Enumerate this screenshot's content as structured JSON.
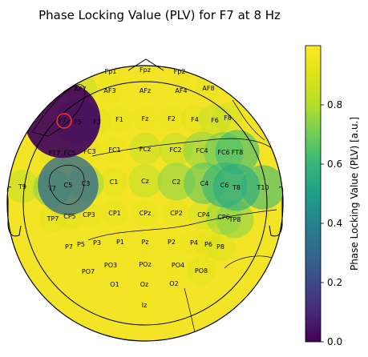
{
  "chart_data": {
    "type": "heatmap",
    "subtype": "topomap",
    "title": "Phase Locking Value (PLV) for F7 at 8 Hz",
    "colorbar": {
      "label": "Phase Locking Value (PLV) [a.u.]",
      "range": [
        0.0,
        1.0
      ],
      "ticks": [
        0.0,
        0.2,
        0.4,
        0.6,
        0.8
      ],
      "tick_labels": [
        "0.0",
        "0.2",
        "0.4",
        "0.6",
        "0.8"
      ],
      "colormap": "viridis"
    },
    "seed_electrode": "F7",
    "contours": true,
    "electrodes": [
      {
        "name": "Fp1",
        "value": 0.95
      },
      {
        "name": "Fpz",
        "value": 0.96
      },
      {
        "name": "Fp2",
        "value": 0.96
      },
      {
        "name": "AF7",
        "value": 0.8
      },
      {
        "name": "AF3",
        "value": 0.93
      },
      {
        "name": "AFz",
        "value": 0.95
      },
      {
        "name": "AF4",
        "value": 0.95
      },
      {
        "name": "AF8",
        "value": 0.93
      },
      {
        "name": "F7",
        "value": 0.02
      },
      {
        "name": "F5",
        "value": 0.6
      },
      {
        "name": "F3",
        "value": 0.9
      },
      {
        "name": "F1",
        "value": 0.93
      },
      {
        "name": "Fz",
        "value": 0.94
      },
      {
        "name": "F2",
        "value": 0.93
      },
      {
        "name": "F4",
        "value": 0.9
      },
      {
        "name": "F6",
        "value": 0.82
      },
      {
        "name": "F8",
        "value": 0.85
      },
      {
        "name": "FT7",
        "value": 0.88
      },
      {
        "name": "FC5",
        "value": 0.9
      },
      {
        "name": "FC3",
        "value": 0.92
      },
      {
        "name": "FC1",
        "value": 0.93
      },
      {
        "name": "FCz",
        "value": 0.82
      },
      {
        "name": "FC2",
        "value": 0.8
      },
      {
        "name": "FC4",
        "value": 0.72
      },
      {
        "name": "FC6",
        "value": 0.68
      },
      {
        "name": "FT8",
        "value": 0.6
      },
      {
        "name": "T9",
        "value": 0.8
      },
      {
        "name": "T7",
        "value": 0.72
      },
      {
        "name": "C5",
        "value": 0.3
      },
      {
        "name": "C3",
        "value": 0.75
      },
      {
        "name": "C1",
        "value": 0.9
      },
      {
        "name": "Cz",
        "value": 0.8
      },
      {
        "name": "C2",
        "value": 0.72
      },
      {
        "name": "C4",
        "value": 0.65
      },
      {
        "name": "C6",
        "value": 0.58
      },
      {
        "name": "T8",
        "value": 0.55
      },
      {
        "name": "T10",
        "value": 0.6
      },
      {
        "name": "TP7",
        "value": 0.9
      },
      {
        "name": "CP5",
        "value": 0.9
      },
      {
        "name": "CP3",
        "value": 0.93
      },
      {
        "name": "CP1",
        "value": 0.92
      },
      {
        "name": "CPz",
        "value": 0.93
      },
      {
        "name": "CP2",
        "value": 0.92
      },
      {
        "name": "CP4",
        "value": 0.85
      },
      {
        "name": "CP6",
        "value": 0.75
      },
      {
        "name": "TP8",
        "value": 0.72
      },
      {
        "name": "P7",
        "value": 0.96
      },
      {
        "name": "P5",
        "value": 0.96
      },
      {
        "name": "P3",
        "value": 0.96
      },
      {
        "name": "P1",
        "value": 0.95
      },
      {
        "name": "Pz",
        "value": 0.95
      },
      {
        "name": "P2",
        "value": 0.95
      },
      {
        "name": "P4",
        "value": 0.94
      },
      {
        "name": "P6",
        "value": 0.9
      },
      {
        "name": "P8",
        "value": 0.88
      },
      {
        "name": "PO7",
        "value": 0.97
      },
      {
        "name": "PO3",
        "value": 0.97
      },
      {
        "name": "POz",
        "value": 0.96
      },
      {
        "name": "PO4",
        "value": 0.95
      },
      {
        "name": "PO8",
        "value": 0.9
      },
      {
        "name": "O1",
        "value": 0.97
      },
      {
        "name": "Oz",
        "value": 0.97
      },
      {
        "name": "O2",
        "value": 0.96
      },
      {
        "name": "Iz",
        "value": 0.97
      }
    ]
  }
}
